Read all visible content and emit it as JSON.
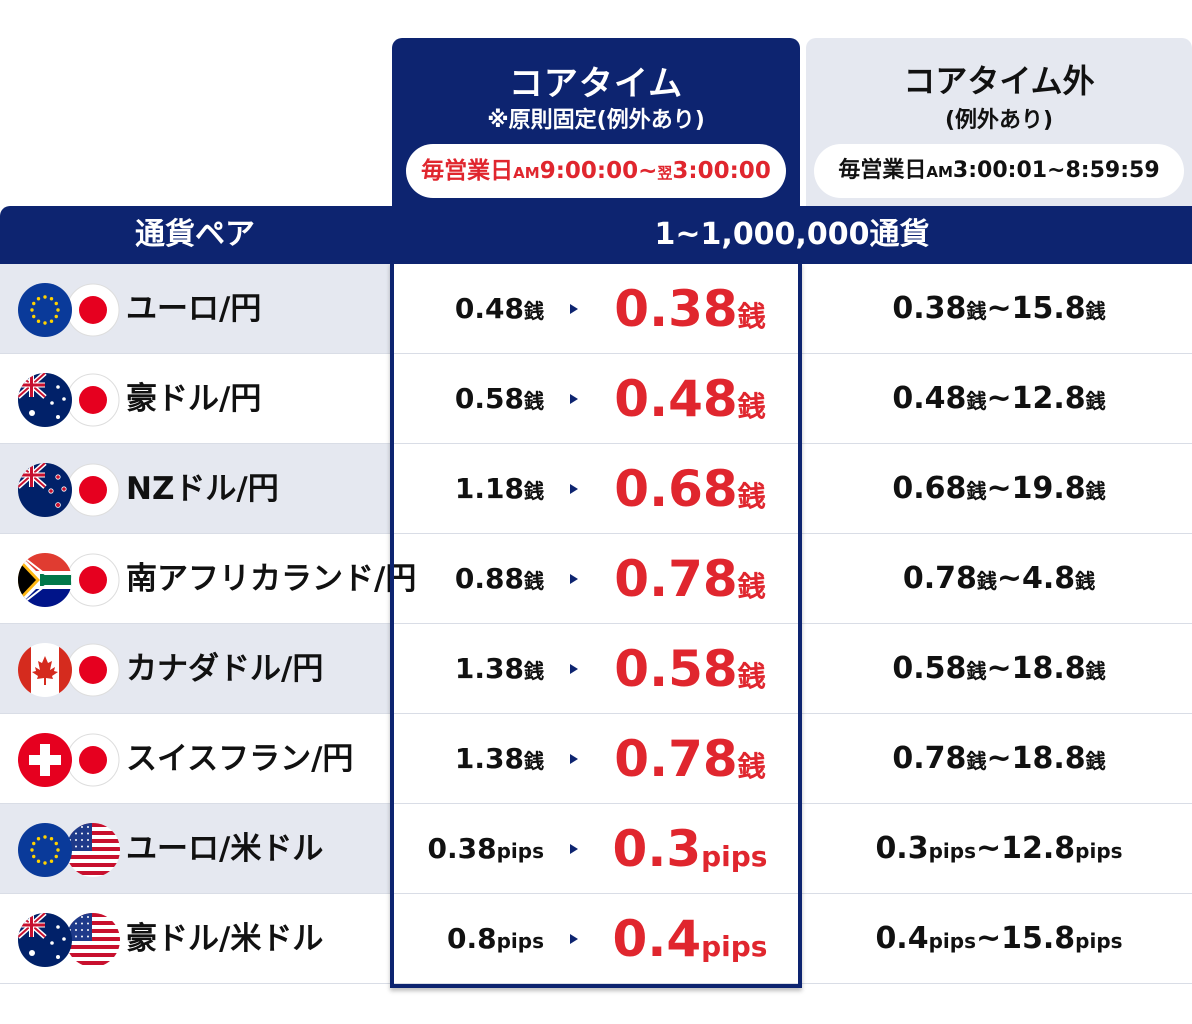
{
  "header": {
    "core": {
      "title": "コアタイム",
      "note": "※原則固定(例外あり)",
      "hours": {
        "prefix": "毎営業日",
        "am": "AM",
        "start": "9:00:00~",
        "next_day": "翌",
        "end": "3:00:00"
      }
    },
    "noncore": {
      "title": "コアタイム外",
      "note": "(例外あり)",
      "hours": {
        "prefix": "毎営業日",
        "am": "AM",
        "range": "3:00:01~8:59:59"
      }
    }
  },
  "bar": {
    "pair_label": "通貨ペア",
    "amount_label": "1~1,000,000通貨"
  },
  "rows": [
    {
      "pair": "ユーロ/円",
      "flags": [
        "eu-flag-icon",
        "japan-flag-icon"
      ],
      "old": "0.48",
      "old_unit": "銭",
      "new": "0.38",
      "new_unit": "銭",
      "range_from": "0.38",
      "range_from_unit": "銭",
      "range_to": "~15.8",
      "range_to_unit": "銭"
    },
    {
      "pair": "豪ドル/円",
      "flags": [
        "australia-flag-icon",
        "japan-flag-icon"
      ],
      "old": "0.58",
      "old_unit": "銭",
      "new": "0.48",
      "new_unit": "銭",
      "range_from": "0.48",
      "range_from_unit": "銭",
      "range_to": "~12.8",
      "range_to_unit": "銭"
    },
    {
      "pair": "NZドル/円",
      "flags": [
        "new-zealand-flag-icon",
        "japan-flag-icon"
      ],
      "old": "1.18",
      "old_unit": "銭",
      "new": "0.68",
      "new_unit": "銭",
      "range_from": "0.68",
      "range_from_unit": "銭",
      "range_to": "~19.8",
      "range_to_unit": "銭"
    },
    {
      "pair": "南アフリカランド/円",
      "flags": [
        "south-africa-flag-icon",
        "japan-flag-icon"
      ],
      "old": "0.88",
      "old_unit": "銭",
      "new": "0.78",
      "new_unit": "銭",
      "range_from": "0.78",
      "range_from_unit": "銭",
      "range_to": "~4.8",
      "range_to_unit": "銭"
    },
    {
      "pair": "カナダドル/円",
      "flags": [
        "canada-flag-icon",
        "japan-flag-icon"
      ],
      "old": "1.38",
      "old_unit": "銭",
      "new": "0.58",
      "new_unit": "銭",
      "range_from": "0.58",
      "range_from_unit": "銭",
      "range_to": "~18.8",
      "range_to_unit": "銭"
    },
    {
      "pair": "スイスフラン/円",
      "flags": [
        "switzerland-flag-icon",
        "japan-flag-icon"
      ],
      "old": "1.38",
      "old_unit": "銭",
      "new": "0.78",
      "new_unit": "銭",
      "range_from": "0.78",
      "range_from_unit": "銭",
      "range_to": "~18.8",
      "range_to_unit": "銭"
    },
    {
      "pair": "ユーロ/米ドル",
      "flags": [
        "eu-flag-icon",
        "usa-flag-icon"
      ],
      "old": "0.38",
      "old_unit": "pips",
      "new": "0.3",
      "new_unit": "pips",
      "range_from": "0.3",
      "range_from_unit": "pips",
      "range_to": "~12.8",
      "range_to_unit": "pips"
    },
    {
      "pair": "豪ドル/米ドル",
      "flags": [
        "australia-flag-icon",
        "usa-flag-icon"
      ],
      "old": "0.8",
      "old_unit": "pips",
      "new": "0.4",
      "new_unit": "pips",
      "range_from": "0.4",
      "range_from_unit": "pips",
      "range_to": "~15.8",
      "range_to_unit": "pips"
    }
  ],
  "colors": {
    "navy": "#0d2470",
    "red": "#e0262e",
    "gray": "#e5e8f0"
  }
}
